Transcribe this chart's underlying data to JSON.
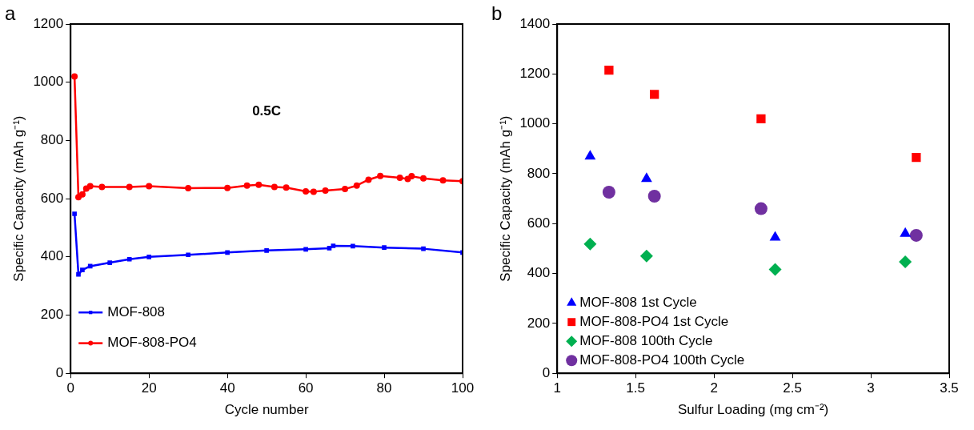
{
  "chart_data": [
    {
      "type": "line",
      "xlabel": "Cycle number",
      "ylabel": "Specific Capacity (mAh g⁻¹)",
      "annotations": [
        "a",
        "0.5C"
      ],
      "xlim": [
        0,
        100
      ],
      "xticks": [
        0,
        20,
        40,
        60,
        80,
        100
      ],
      "ylim": [
        0,
        1200
      ],
      "yticks": [
        0,
        200,
        400,
        600,
        800,
        1000,
        1200
      ],
      "grid": false,
      "legend": "bottom left",
      "line_style": "solid",
      "series": [
        {
          "name": "MOF-808",
          "color": "#0000ff",
          "marker": "square",
          "x": [
            1,
            2,
            3,
            5,
            10,
            15,
            20,
            30,
            40,
            50,
            60,
            66,
            67,
            72,
            80,
            90,
            100
          ],
          "values": [
            548,
            340,
            355,
            368,
            380,
            392,
            400,
            407,
            415,
            422,
            426,
            430,
            438,
            437,
            432,
            428,
            415
          ]
        },
        {
          "name": "MOF-808-PO4",
          "color": "#ff0000",
          "marker": "circle",
          "x": [
            1,
            2,
            3,
            4,
            5,
            8,
            15,
            20,
            30,
            40,
            45,
            48,
            52,
            55,
            60,
            62,
            65,
            70,
            73,
            76,
            79,
            84,
            86,
            87,
            90,
            95,
            100
          ],
          "values": [
            1020,
            605,
            615,
            635,
            643,
            640,
            640,
            643,
            636,
            637,
            645,
            648,
            640,
            638,
            625,
            624,
            628,
            633,
            645,
            665,
            678,
            672,
            668,
            677,
            670,
            663,
            660
          ]
        }
      ]
    },
    {
      "type": "scatter",
      "xlabel": "Sulfur Loading (mg cm⁻²)",
      "ylabel": "Specific Capacity (mAh g⁻¹)",
      "annotations": [
        "b"
      ],
      "xlim": [
        1,
        3.5
      ],
      "xticks": [
        1,
        1.5,
        2,
        2.5,
        3,
        3.5
      ],
      "ylim": [
        0,
        1400
      ],
      "yticks": [
        0,
        200,
        400,
        600,
        800,
        1000,
        1200,
        1400
      ],
      "grid": false,
      "legend": "bottom left",
      "series": [
        {
          "name": "MOF-808 1st Cycle",
          "color": "#0000ff",
          "marker": "triangle",
          "x": [
            1.21,
            1.57,
            2.39,
            3.22
          ],
          "values": [
            870,
            780,
            545,
            560
          ]
        },
        {
          "name": "MOF-808-PO4 1st Cycle",
          "color": "#ff0000",
          "marker": "square",
          "x": [
            1.33,
            1.62,
            2.3,
            3.29
          ],
          "values": [
            1215,
            1118,
            1020,
            865
          ]
        },
        {
          "name": "MOF-808 100th Cycle",
          "color": "#00b050",
          "marker": "diamond",
          "x": [
            1.21,
            1.57,
            2.39,
            3.22
          ],
          "values": [
            518,
            470,
            416,
            447
          ]
        },
        {
          "name": "MOF-808-PO4 100th Cycle",
          "color": "#7030a0",
          "marker": "circle",
          "x": [
            1.33,
            1.62,
            2.3,
            3.29
          ],
          "values": [
            726,
            710,
            660,
            553
          ]
        }
      ]
    }
  ]
}
